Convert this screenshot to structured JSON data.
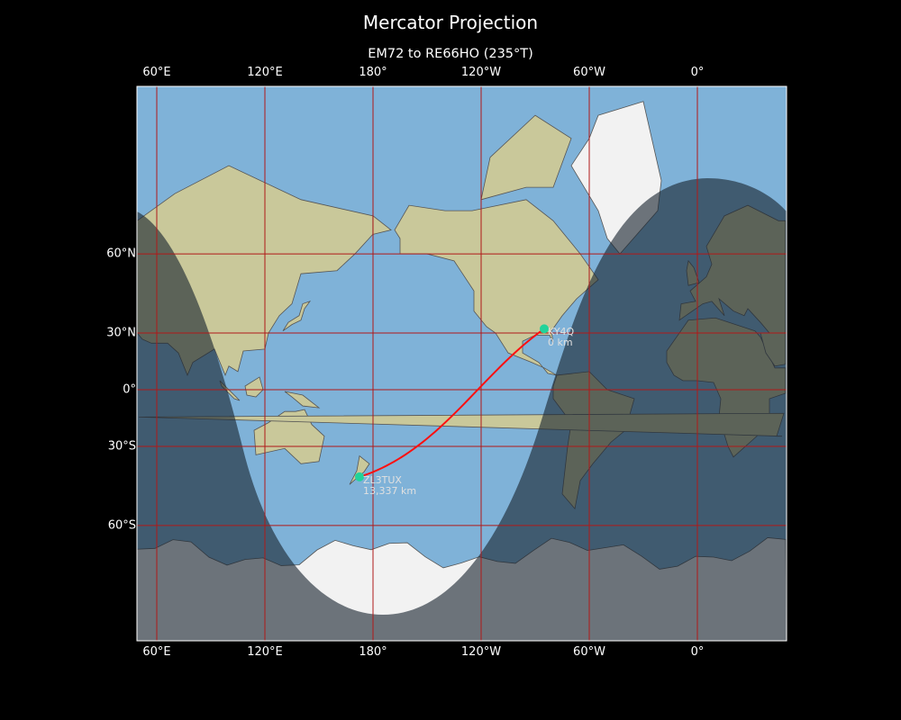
{
  "title": "Mercator Projection",
  "subtitle": "EM72 to RE66HO (235°T)",
  "map": {
    "projection": "Mercator",
    "lon_ticks": [
      {
        "lon": 60,
        "label": "60°E"
      },
      {
        "lon": 120,
        "label": "120°E"
      },
      {
        "lon": 180,
        "label": "180°"
      },
      {
        "lon": -120,
        "label": "120°W"
      },
      {
        "lon": -60,
        "label": "60°W"
      },
      {
        "lon": 0,
        "label": "0°"
      }
    ],
    "lat_ticks": [
      {
        "lat": 60,
        "label": "60°N"
      },
      {
        "lat": 30,
        "label": "30°N"
      },
      {
        "lat": 0,
        "label": "0°"
      },
      {
        "lat": -30,
        "label": "30°S"
      },
      {
        "lat": -60,
        "label": "60°S"
      }
    ],
    "central_longitude": -131,
    "day_night_overlay": true,
    "colors": {
      "ocean": "#7fb2d8",
      "land": "#c9c89a",
      "ice": "#f2f2f2",
      "grid": "#b01818",
      "route": "#ff1010",
      "marker": "#22d39a",
      "night": "#1a2530"
    }
  },
  "stations": [
    {
      "call": "KY4Q",
      "distance": "0 km",
      "lat": 32,
      "lon": -85
    },
    {
      "call": "ZL3TUX",
      "distance": "13,337 km",
      "lat": -43.5,
      "lon": 172.5
    }
  ]
}
